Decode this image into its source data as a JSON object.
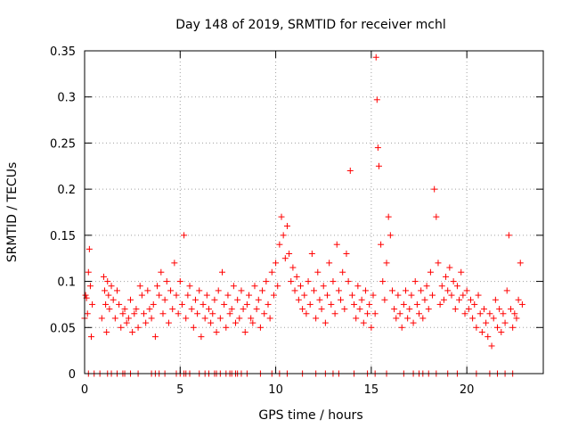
{
  "chart_data": {
    "type": "scatter",
    "title": "Day 148 of 2019, SRMTID for receiver mchl",
    "xlabel": "GPS time / hours",
    "ylabel": "SRMTID / TECUs",
    "xlim": [
      0,
      24
    ],
    "ylim": [
      0,
      0.35
    ],
    "xticks": [
      0,
      5,
      10,
      15,
      20
    ],
    "xtick_labels": [
      "0",
      "5",
      "10",
      "15",
      "20"
    ],
    "yticks": [
      0,
      0.05,
      0.1,
      0.15,
      0.2,
      0.25,
      0.3,
      0.35
    ],
    "ytick_labels": [
      "0",
      "0.05",
      "0.1",
      "0.15",
      "0.2",
      "0.25",
      "0.3",
      "0.35"
    ],
    "grid": true,
    "marker": "+",
    "marker_color": "#ff0000",
    "series": [
      {
        "name": "SRMTID",
        "points": [
          [
            0.0,
            0.06
          ],
          [
            0.05,
            0.085
          ],
          [
            0.1,
            0.082
          ],
          [
            0.15,
            0.065
          ],
          [
            0.2,
            0.11
          ],
          [
            0.25,
            0.135
          ],
          [
            0.3,
            0.095
          ],
          [
            0.35,
            0.04
          ],
          [
            0.4,
            0.075
          ],
          [
            0.9,
            0.06
          ],
          [
            1.0,
            0.105
          ],
          [
            1.05,
            0.09
          ],
          [
            1.1,
            0.075
          ],
          [
            1.15,
            0.045
          ],
          [
            1.2,
            0.1
          ],
          [
            1.25,
            0.085
          ],
          [
            1.3,
            0.07
          ],
          [
            1.4,
            0.095
          ],
          [
            1.5,
            0.08
          ],
          [
            1.6,
            0.06
          ],
          [
            1.7,
            0.09
          ],
          [
            1.8,
            0.075
          ],
          [
            1.9,
            0.05
          ],
          [
            2.0,
            0.065
          ],
          [
            2.1,
            0.07
          ],
          [
            2.2,
            0.055
          ],
          [
            2.3,
            0.06
          ],
          [
            2.4,
            0.08
          ],
          [
            2.5,
            0.045
          ],
          [
            2.6,
            0.065
          ],
          [
            2.7,
            0.07
          ],
          [
            2.8,
            0.05
          ],
          [
            2.9,
            0.095
          ],
          [
            3.0,
            0.085
          ],
          [
            3.1,
            0.065
          ],
          [
            3.2,
            0.055
          ],
          [
            3.3,
            0.09
          ],
          [
            3.4,
            0.07
          ],
          [
            3.5,
            0.06
          ],
          [
            3.6,
            0.075
          ],
          [
            3.7,
            0.04
          ],
          [
            3.8,
            0.095
          ],
          [
            3.9,
            0.085
          ],
          [
            4.0,
            0.11
          ],
          [
            4.1,
            0.065
          ],
          [
            4.2,
            0.08
          ],
          [
            4.3,
            0.1
          ],
          [
            4.4,
            0.055
          ],
          [
            4.5,
            0.09
          ],
          [
            4.6,
            0.07
          ],
          [
            4.7,
            0.12
          ],
          [
            4.8,
            0.085
          ],
          [
            4.9,
            0.065
          ],
          [
            5.0,
            0.1
          ],
          [
            5.1,
            0.075
          ],
          [
            5.2,
            0.15
          ],
          [
            5.3,
            0.06
          ],
          [
            5.4,
            0.085
          ],
          [
            5.5,
            0.095
          ],
          [
            5.6,
            0.07
          ],
          [
            5.7,
            0.05
          ],
          [
            5.8,
            0.08
          ],
          [
            5.9,
            0.065
          ],
          [
            6.0,
            0.09
          ],
          [
            6.1,
            0.04
          ],
          [
            6.2,
            0.075
          ],
          [
            6.3,
            0.06
          ],
          [
            6.4,
            0.085
          ],
          [
            6.5,
            0.07
          ],
          [
            6.6,
            0.055
          ],
          [
            6.7,
            0.065
          ],
          [
            6.8,
            0.08
          ],
          [
            6.9,
            0.045
          ],
          [
            7.0,
            0.09
          ],
          [
            7.1,
            0.06
          ],
          [
            7.2,
            0.11
          ],
          [
            7.3,
            0.075
          ],
          [
            7.4,
            0.05
          ],
          [
            7.5,
            0.085
          ],
          [
            7.6,
            0.065
          ],
          [
            7.7,
            0.07
          ],
          [
            7.8,
            0.095
          ],
          [
            7.9,
            0.055
          ],
          [
            8.0,
            0.08
          ],
          [
            8.1,
            0.06
          ],
          [
            8.2,
            0.09
          ],
          [
            8.3,
            0.07
          ],
          [
            8.4,
            0.045
          ],
          [
            8.5,
            0.075
          ],
          [
            8.6,
            0.085
          ],
          [
            8.7,
            0.06
          ],
          [
            8.8,
            0.055
          ],
          [
            8.9,
            0.095
          ],
          [
            9.0,
            0.07
          ],
          [
            9.1,
            0.08
          ],
          [
            9.2,
            0.05
          ],
          [
            9.3,
            0.09
          ],
          [
            9.4,
            0.065
          ],
          [
            9.5,
            0.1
          ],
          [
            9.6,
            0.075
          ],
          [
            9.7,
            0.06
          ],
          [
            9.8,
            0.11
          ],
          [
            9.9,
            0.085
          ],
          [
            10.0,
            0.12
          ],
          [
            10.1,
            0.095
          ],
          [
            10.2,
            0.14
          ],
          [
            10.3,
            0.17
          ],
          [
            10.4,
            0.15
          ],
          [
            10.5,
            0.125
          ],
          [
            10.6,
            0.16
          ],
          [
            10.7,
            0.13
          ],
          [
            10.8,
            0.1
          ],
          [
            10.9,
            0.115
          ],
          [
            11.0,
            0.09
          ],
          [
            11.1,
            0.105
          ],
          [
            11.2,
            0.08
          ],
          [
            11.3,
            0.095
          ],
          [
            11.4,
            0.07
          ],
          [
            11.5,
            0.085
          ],
          [
            11.6,
            0.065
          ],
          [
            11.7,
            0.1
          ],
          [
            11.8,
            0.075
          ],
          [
            11.9,
            0.13
          ],
          [
            12.0,
            0.09
          ],
          [
            12.1,
            0.06
          ],
          [
            12.2,
            0.11
          ],
          [
            12.3,
            0.08
          ],
          [
            12.4,
            0.07
          ],
          [
            12.5,
            0.095
          ],
          [
            12.6,
            0.055
          ],
          [
            12.7,
            0.085
          ],
          [
            12.8,
            0.12
          ],
          [
            12.9,
            0.075
          ],
          [
            13.0,
            0.1
          ],
          [
            13.1,
            0.065
          ],
          [
            13.2,
            0.14
          ],
          [
            13.3,
            0.09
          ],
          [
            13.4,
            0.08
          ],
          [
            13.5,
            0.11
          ],
          [
            13.6,
            0.07
          ],
          [
            13.7,
            0.13
          ],
          [
            13.8,
            0.1
          ],
          [
            13.9,
            0.22
          ],
          [
            14.0,
            0.085
          ],
          [
            14.1,
            0.075
          ],
          [
            14.2,
            0.06
          ],
          [
            14.3,
            0.095
          ],
          [
            14.4,
            0.07
          ],
          [
            14.5,
            0.08
          ],
          [
            14.6,
            0.055
          ],
          [
            14.7,
            0.09
          ],
          [
            14.8,
            0.065
          ],
          [
            14.9,
            0.075
          ],
          [
            15.0,
            0.05
          ],
          [
            15.1,
            0.085
          ],
          [
            15.2,
            0.065
          ],
          [
            15.25,
            0.343
          ],
          [
            15.3,
            0.297
          ],
          [
            15.35,
            0.245
          ],
          [
            15.4,
            0.225
          ],
          [
            15.5,
            0.14
          ],
          [
            15.6,
            0.1
          ],
          [
            15.7,
            0.08
          ],
          [
            15.8,
            0.12
          ],
          [
            15.9,
            0.17
          ],
          [
            16.0,
            0.15
          ],
          [
            16.1,
            0.09
          ],
          [
            16.2,
            0.07
          ],
          [
            16.3,
            0.06
          ],
          [
            16.4,
            0.085
          ],
          [
            16.5,
            0.065
          ],
          [
            16.6,
            0.05
          ],
          [
            16.7,
            0.075
          ],
          [
            16.8,
            0.09
          ],
          [
            16.9,
            0.06
          ],
          [
            17.0,
            0.07
          ],
          [
            17.1,
            0.085
          ],
          [
            17.2,
            0.055
          ],
          [
            17.3,
            0.1
          ],
          [
            17.4,
            0.075
          ],
          [
            17.5,
            0.065
          ],
          [
            17.6,
            0.09
          ],
          [
            17.7,
            0.06
          ],
          [
            17.8,
            0.08
          ],
          [
            17.9,
            0.095
          ],
          [
            18.0,
            0.07
          ],
          [
            18.1,
            0.11
          ],
          [
            18.2,
            0.085
          ],
          [
            18.3,
            0.2
          ],
          [
            18.4,
            0.17
          ],
          [
            18.5,
            0.12
          ],
          [
            18.6,
            0.075
          ],
          [
            18.7,
            0.095
          ],
          [
            18.8,
            0.08
          ],
          [
            18.9,
            0.105
          ],
          [
            19.0,
            0.09
          ],
          [
            19.1,
            0.115
          ],
          [
            19.2,
            0.085
          ],
          [
            19.3,
            0.1
          ],
          [
            19.4,
            0.07
          ],
          [
            19.5,
            0.095
          ],
          [
            19.6,
            0.08
          ],
          [
            19.7,
            0.11
          ],
          [
            19.8,
            0.085
          ],
          [
            19.9,
            0.065
          ],
          [
            20.0,
            0.09
          ],
          [
            20.1,
            0.07
          ],
          [
            20.2,
            0.08
          ],
          [
            20.3,
            0.06
          ],
          [
            20.4,
            0.075
          ],
          [
            20.5,
            0.05
          ],
          [
            20.6,
            0.085
          ],
          [
            20.7,
            0.065
          ],
          [
            20.8,
            0.045
          ],
          [
            20.9,
            0.07
          ],
          [
            21.0,
            0.055
          ],
          [
            21.1,
            0.04
          ],
          [
            21.2,
            0.065
          ],
          [
            21.3,
            0.03
          ],
          [
            21.4,
            0.06
          ],
          [
            21.5,
            0.08
          ],
          [
            21.6,
            0.05
          ],
          [
            21.7,
            0.07
          ],
          [
            21.8,
            0.045
          ],
          [
            21.9,
            0.065
          ],
          [
            22.0,
            0.055
          ],
          [
            22.1,
            0.09
          ],
          [
            22.2,
            0.15
          ],
          [
            22.3,
            0.07
          ],
          [
            22.4,
            0.05
          ],
          [
            22.5,
            0.065
          ],
          [
            22.6,
            0.06
          ],
          [
            22.7,
            0.08
          ],
          [
            22.8,
            0.12
          ],
          [
            22.9,
            0.075
          ]
        ]
      }
    ],
    "zero_band_hours": [
      0.2,
      0.5,
      0.8,
      1.2,
      1.4,
      1.7,
      2.0,
      2.1,
      2.4,
      2.8,
      3.5,
      3.7,
      3.9,
      4.2,
      4.8,
      5.0,
      5.2,
      5.3,
      5.5,
      6.0,
      6.3,
      6.5,
      6.8,
      6.9,
      7.1,
      7.4,
      7.6,
      7.7,
      7.9,
      8.0,
      8.2,
      8.5,
      9.2,
      9.8,
      10.2,
      10.6,
      11.4,
      12.1,
      12.6,
      13.0,
      13.3,
      14.1,
      14.8,
      15.2,
      15.8,
      16.7,
      17.2,
      17.5,
      17.7,
      18.0,
      18.4,
      19.0,
      19.5,
      20.5,
      21.2,
      21.6,
      22.0,
      22.4
    ]
  }
}
